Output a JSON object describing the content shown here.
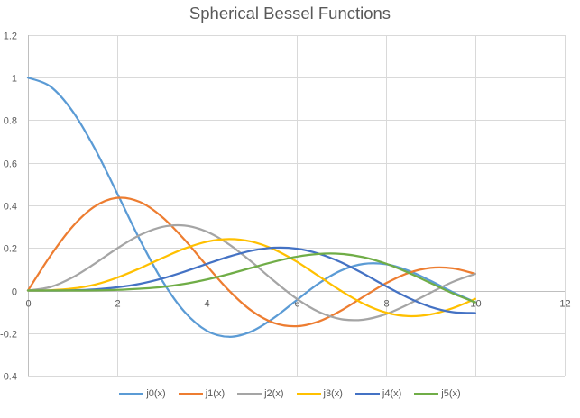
{
  "chart_data": {
    "type": "line",
    "title": "Spherical Bessel Functions",
    "xlabel": "",
    "ylabel": "",
    "xlim": [
      0,
      12
    ],
    "ylim": [
      -0.4,
      1.2
    ],
    "xticks": [
      0,
      2,
      4,
      6,
      8,
      10,
      12
    ],
    "yticks": [
      -0.4,
      -0.2,
      0,
      0.2,
      0.4,
      0.6,
      0.8,
      1,
      1.2
    ],
    "ytick_labels": [
      "-0.4",
      "-0.2",
      "0",
      "0.2",
      "0.4",
      "0.6",
      "0.8",
      "1",
      "1.2"
    ],
    "grid": "vertical and horizontal major gridlines",
    "legend_position": "bottom",
    "x": [
      0,
      0.5,
      1,
      1.5,
      2,
      2.5,
      3,
      3.5,
      4,
      4.5,
      5,
      5.5,
      6,
      6.5,
      7,
      7.5,
      8,
      8.5,
      9,
      9.5,
      10
    ],
    "series": [
      {
        "name": "j0(x)",
        "color": "#5B9BD5",
        "values": [
          1,
          0.9589,
          0.8415,
          0.665,
          0.4546,
          0.2394,
          0.047,
          -0.1002,
          -0.1892,
          -0.2172,
          -0.1918,
          -0.1283,
          -0.0466,
          0.0331,
          0.0939,
          0.125,
          0.1237,
          0.094,
          0.0458,
          -0.0079,
          -0.0544
        ]
      },
      {
        "name": "j1(x)",
        "color": "#ED7D31",
        "values": [
          0,
          0.1625,
          0.3012,
          0.3961,
          0.4354,
          0.4163,
          0.3457,
          0.239,
          0.1161,
          -0.0015,
          -0.0951,
          -0.1522,
          -0.1678,
          -0.1451,
          -0.0943,
          -0.0295,
          0.0337,
          0.0819,
          0.1063,
          0.1042,
          0.0785
        ]
      },
      {
        "name": "j2(x)",
        "color": "#A5A5A5",
        "values": [
          0,
          0.0164,
          0.0621,
          0.1272,
          0.1985,
          0.2602,
          0.2987,
          0.3051,
          0.2763,
          0.2162,
          0.1347,
          0.0453,
          -0.0373,
          -0.1001,
          -0.1343,
          -0.1368,
          -0.1111,
          -0.0651,
          -0.0104,
          0.0408,
          0.078
        ]
      },
      {
        "name": "j3(x)",
        "color": "#FFC000",
        "values": [
          0,
          0.0012,
          0.0093,
          0.0279,
          0.0609,
          0.1041,
          0.1521,
          0.1969,
          0.2293,
          0.2417,
          0.2298,
          0.1934,
          0.1367,
          0.0681,
          -0.0016,
          -0.0617,
          -0.1031,
          -0.1202,
          -0.1121,
          -0.0827,
          -0.0395
        ]
      },
      {
        "name": "j4(x)",
        "color": "#4472C4",
        "values": [
          0,
          0.0001,
          0.0011,
          0.0054,
          0.0151,
          0.0313,
          0.0562,
          0.0887,
          0.125,
          0.1598,
          0.187,
          0.2008,
          0.1968,
          0.1734,
          0.1327,
          0.0792,
          0.0209,
          -0.0339,
          -0.0768,
          -0.1017,
          -0.1057
        ]
      },
      {
        "name": "j5(x)",
        "color": "#70AD47",
        "values": [
          0,
          0,
          0.0001,
          0.0007,
          0.003,
          0.0086,
          0.0165,
          0.0312,
          0.052,
          0.0779,
          0.1068,
          0.1352,
          0.1585,
          0.172,
          0.1722,
          0.1567,
          0.1266,
          0.0843,
          0.0353,
          -0.0136,
          -0.0556
        ]
      }
    ]
  }
}
